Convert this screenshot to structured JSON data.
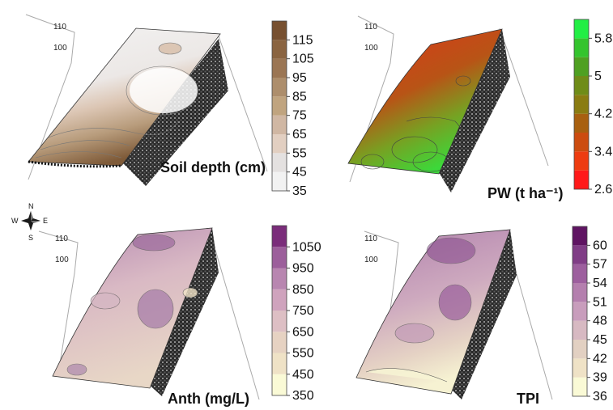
{
  "compass": {
    "n": "N",
    "s": "S",
    "e": "E",
    "w": "W"
  },
  "chart_data": [
    {
      "type": "heatmap",
      "title": "Soil depth (cm)",
      "axis_ticks": [
        "110",
        "100"
      ],
      "colorbar": {
        "levels": [
          35,
          45,
          55,
          65,
          75,
          85,
          95,
          105,
          115,
          125
        ],
        "tick_labels": [
          "115",
          "105",
          "95",
          "85",
          "75",
          "65",
          "55",
          "45",
          "35"
        ],
        "colors": [
          "#f2f2f2",
          "#e4e1e0",
          "#e2cfc1",
          "#d0b7a3",
          "#c0a47f",
          "#ad8e6c",
          "#9b7654",
          "#8a6441",
          "#775030"
        ]
      }
    },
    {
      "type": "heatmap",
      "title": "PW (t ha⁻¹)",
      "axis_ticks": [
        "110",
        "100"
      ],
      "colorbar": {
        "levels": [
          2.6,
          3.0,
          3.4,
          3.8,
          4.2,
          4.6,
          5.0,
          5.4,
          5.8,
          6.2
        ],
        "tick_labels": [
          "5.8",
          "5",
          "4.2",
          "3.4",
          "2.6"
        ],
        "colors": [
          "#ff1a1a",
          "#ee3c10",
          "#cc4c10",
          "#a86010",
          "#8a7c12",
          "#6f8c18",
          "#4fa022",
          "#34c42e",
          "#22ee44"
        ]
      }
    },
    {
      "type": "heatmap",
      "title": "Anth (mg/L)",
      "axis_ticks": [
        "110",
        "100"
      ],
      "colorbar": {
        "levels": [
          350,
          450,
          550,
          650,
          750,
          850,
          950,
          1050,
          1150
        ],
        "tick_labels": [
          "1050",
          "950",
          "850",
          "750",
          "650",
          "550",
          "450",
          "350"
        ],
        "colors": [
          "#fafad6",
          "#efe2c6",
          "#e6d2c2",
          "#ddbfc4",
          "#cfa3bd",
          "#b886b0",
          "#9c5f9b",
          "#7a2d7a"
        ]
      }
    },
    {
      "type": "heatmap",
      "title": "TPI",
      "axis_ticks": [
        "110",
        "100"
      ],
      "colorbar": {
        "levels": [
          36,
          39,
          42,
          45,
          48,
          51,
          54,
          57,
          60,
          63
        ],
        "tick_labels": [
          "60",
          "57",
          "54",
          "51",
          "48",
          "45",
          "42",
          "39",
          "36"
        ],
        "colors": [
          "#fafad6",
          "#efe2c6",
          "#e2d0c2",
          "#d7b9c2",
          "#c89dbc",
          "#b47fae",
          "#9d5f9e",
          "#803d86",
          "#5f1462"
        ]
      }
    }
  ]
}
